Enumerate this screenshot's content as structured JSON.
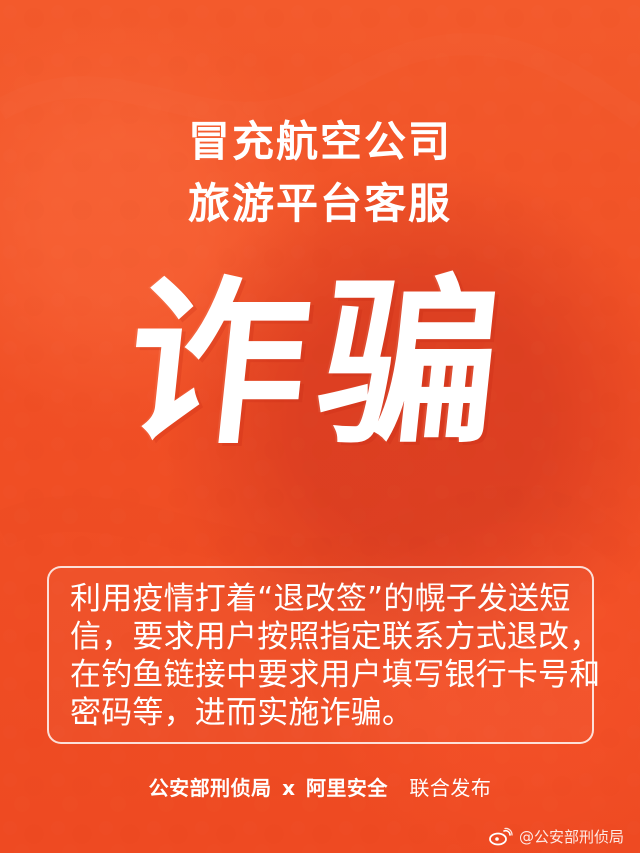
{
  "poster": {
    "headline_line1": "冒充航空公司",
    "headline_line2": "旅游平台客服",
    "main_word": "诈骗",
    "info_lines": [
      "利用疫情打着“退改签”的幌子发送短",
      "信，要求用户按照指定联系方式退改，",
      "在钓鱼链接中要求用户填写银行卡号和",
      "密码等，进而实施诈骗。"
    ],
    "footer": {
      "issuer1": "公安部刑侦局",
      "connector": "x",
      "issuer2": "阿里安全",
      "suffix": "联合发布"
    },
    "watermark": {
      "icon": "weibo-icon",
      "text": "@公安部刑侦局"
    }
  },
  "colors": {
    "background": "#f05126",
    "text": "#ffffff"
  }
}
